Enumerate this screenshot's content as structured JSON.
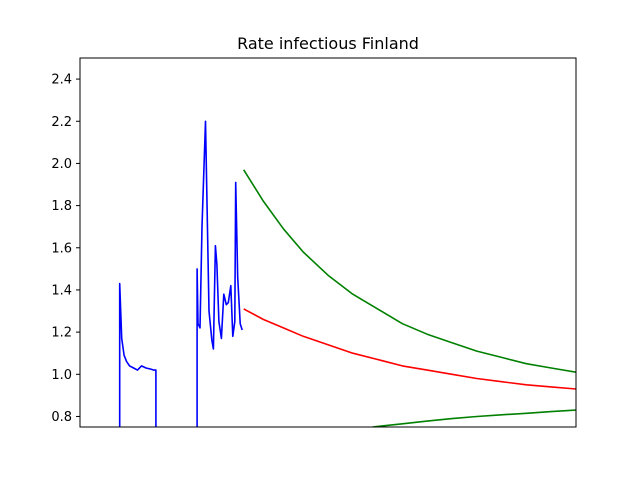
{
  "chart_data": {
    "type": "line",
    "title": "Rate infectious Finland",
    "xlabel": "",
    "ylabel": "",
    "ylim": [
      0.75,
      2.5
    ],
    "xlim": [
      0,
      100
    ],
    "yticks": [
      "0.8",
      "1.0",
      "1.2",
      "1.4",
      "1.6",
      "1.8",
      "2.0",
      "2.2",
      "2.4"
    ],
    "x_tick_labels_visible": false,
    "grid": false,
    "legend": "none",
    "series": [
      {
        "color": "#0000ff",
        "segments": [
          {
            "x": [
              8.0,
              8.0,
              8.4,
              8.9,
              9.4,
              10.0,
              10.8,
              11.6,
              12.4,
              13.3,
              14.2,
              14.9,
              15.3,
              15.3
            ],
            "y": [
              0.75,
              1.43,
              1.17,
              1.09,
              1.06,
              1.04,
              1.03,
              1.02,
              1.04,
              1.03,
              1.025,
              1.02,
              1.02,
              0.75
            ]
          },
          {
            "x": [
              23.6,
              23.6,
              23.8,
              24.2,
              24.6,
              25.3,
              26.0,
              26.6,
              26.9,
              27.3,
              27.6,
              28.0,
              28.5,
              29.0,
              29.5,
              29.9,
              30.4,
              30.8,
              31.2,
              31.4,
              31.8,
              32.3,
              32.7
            ],
            "y": [
              0.75,
              1.5,
              1.24,
              1.22,
              1.7,
              2.2,
              1.3,
              1.16,
              1.12,
              1.61,
              1.52,
              1.25,
              1.17,
              1.38,
              1.33,
              1.34,
              1.42,
              1.18,
              1.25,
              1.91,
              1.46,
              1.24,
              1.21
            ]
          }
        ]
      },
      {
        "color": "#ff0000",
        "x": [
          33,
          37,
          41,
          45,
          50,
          55,
          60,
          65,
          70,
          75,
          80,
          85,
          90,
          95,
          100
        ],
        "y": [
          1.31,
          1.26,
          1.22,
          1.18,
          1.14,
          1.1,
          1.07,
          1.04,
          1.02,
          1.0,
          0.98,
          0.965,
          0.95,
          0.94,
          0.93
        ]
      },
      {
        "color": "#008000",
        "x": [
          33,
          37,
          41,
          45,
          50,
          55,
          60,
          65,
          70,
          75,
          80,
          85,
          90,
          95,
          100
        ],
        "y": [
          1.97,
          1.82,
          1.69,
          1.58,
          1.47,
          1.38,
          1.31,
          1.24,
          1.19,
          1.15,
          1.11,
          1.08,
          1.05,
          1.03,
          1.01
        ]
      },
      {
        "color": "#008000",
        "x": [
          59,
          65,
          70,
          75,
          80,
          85,
          90,
          95,
          100
        ],
        "y": [
          0.75,
          0.765,
          0.778,
          0.79,
          0.8,
          0.808,
          0.815,
          0.823,
          0.83
        ]
      }
    ]
  }
}
